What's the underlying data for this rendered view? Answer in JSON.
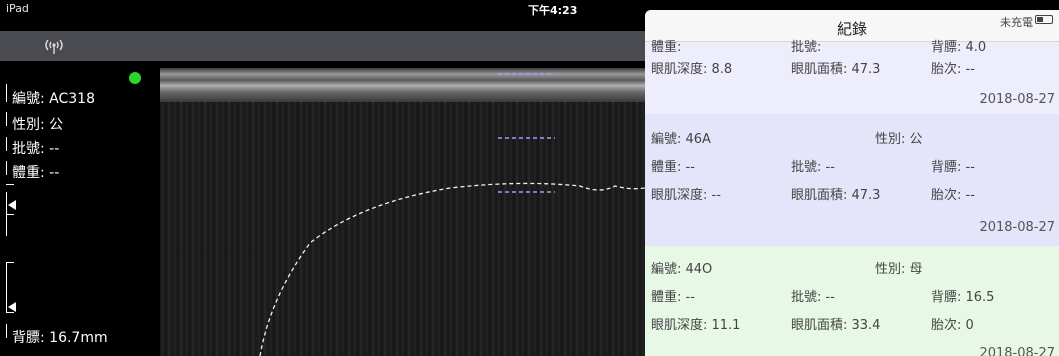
{
  "status_bar": {
    "device": "iPad",
    "time": "下午4:23"
  },
  "info_panel": {
    "id": "編號: AC318",
    "sex": "性別: 公",
    "batch": "批號: --",
    "weight": "體重: --",
    "backfat": "背膘: 16.7mm",
    "status_color": "#2bd62b"
  },
  "records": {
    "title": "紀錄",
    "battery_text": "未充電",
    "items": [
      {
        "partial_row": [
          "體重:",
          "批號:",
          "背膘: 4.0"
        ],
        "loin_depth": "眼肌深度: 8.8",
        "loin_area": "眼肌面積: 47.3",
        "parity": "胎次: --",
        "date": "2018-08-27"
      },
      {
        "id": "編號: 46A",
        "sex": "性別: 公",
        "weight": "體重: --",
        "batch": "批號: --",
        "backfat": "背膘: --",
        "loin_depth": "眼肌深度: --",
        "loin_area": "眼肌面積: 47.3",
        "parity": "胎次: --",
        "date": "2018-08-27"
      },
      {
        "id": "編號: 44O",
        "sex": "性別: 母",
        "weight": "體重: --",
        "batch": "批號: --",
        "backfat": "背膘: 16.5",
        "loin_depth": "眼肌深度: 11.1",
        "loin_area": "眼肌面積: 33.4",
        "parity": "胎次: 0",
        "date": "2018-08-27"
      }
    ]
  },
  "colors": {
    "selected_card": "#e4e4fa",
    "highlight_card": "#e8f8e6",
    "toolbar": "#4a4b50"
  }
}
